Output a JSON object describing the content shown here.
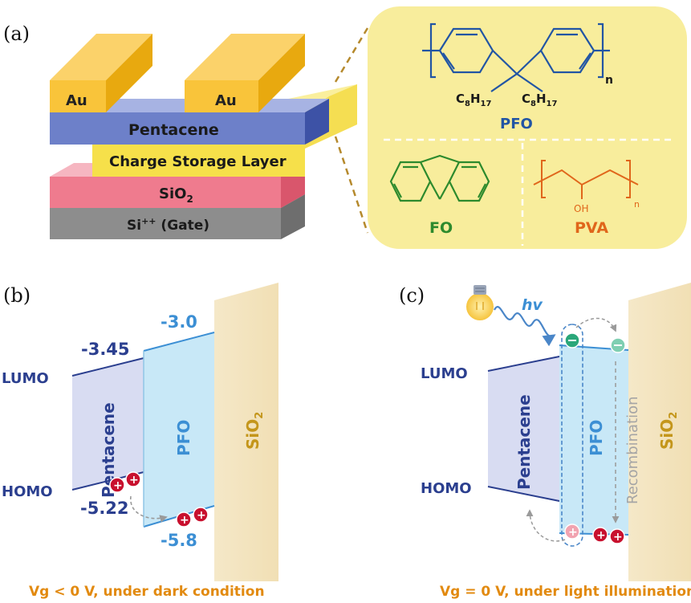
{
  "panel_a": {
    "tag": "(a)",
    "au_left": "Au",
    "au_right": "Au",
    "pentacene": "Pentacene",
    "charge_storage": "Charge Storage Layer",
    "sio2_main": "SiO",
    "sio2_sub": "2",
    "gate": "Si",
    "gate_sup": "++",
    "gate_tail": " (Gate)",
    "pfo_name": "PFO",
    "pfo_n": "n",
    "pfo_sub_left": "C",
    "pfo_sub_left_idx1": "8",
    "pfo_sub_left_h": "H",
    "pfo_sub_left_idx2": "17",
    "pfo_sub_right": "C",
    "pfo_sub_right_idx1": "8",
    "pfo_sub_right_h": "H",
    "pfo_sub_right_idx2": "17",
    "fo_name": "FO",
    "pva_name": "PVA",
    "pva_oh": "OH",
    "pva_n": "n"
  },
  "panel_b": {
    "tag": "(b)",
    "lumo": "LUMO",
    "homo": "HOMO",
    "pentacene_lumo": "-3.45",
    "pentacene_homo": "-5.22",
    "pfo_lumo": "-3.0",
    "pfo_homo": "-5.8",
    "pentacene": "Pentacene",
    "pfo": "PFO",
    "sio2": "SiO",
    "sio2_sub": "2",
    "caption": "Vg < 0 V, under dark condition"
  },
  "panel_c": {
    "tag": "(c)",
    "hv": "hv",
    "lumo": "LUMO",
    "homo": "HOMO",
    "pentacene": "Pentacene",
    "pfo": "PFO",
    "recombination": "Recombination",
    "sio2": "SiO",
    "sio2_sub": "2",
    "caption": "Vg = 0 V, under light illumination"
  },
  "colors": {
    "au_top": "#fbd26a",
    "au_front": "#f9c43a",
    "au_side": "#e8a90f",
    "pentacene": "#6d80c9",
    "pentacene_side": "#3d52a6",
    "csl": "#f6e04a",
    "sio2": "#ef7b8e",
    "si": "#8d8d8d",
    "highlight_bg": "#f8ed9c",
    "pfo_color": "#2255a4",
    "fo_color": "#2d8a2d",
    "pva_color": "#e0661b",
    "dark_blue": "#2b3f8f",
    "light_blue": "#3c8fd4",
    "sio2_band": "#f3e3be",
    "sio2_text": "#c4961b",
    "caption": "#e28a10"
  }
}
